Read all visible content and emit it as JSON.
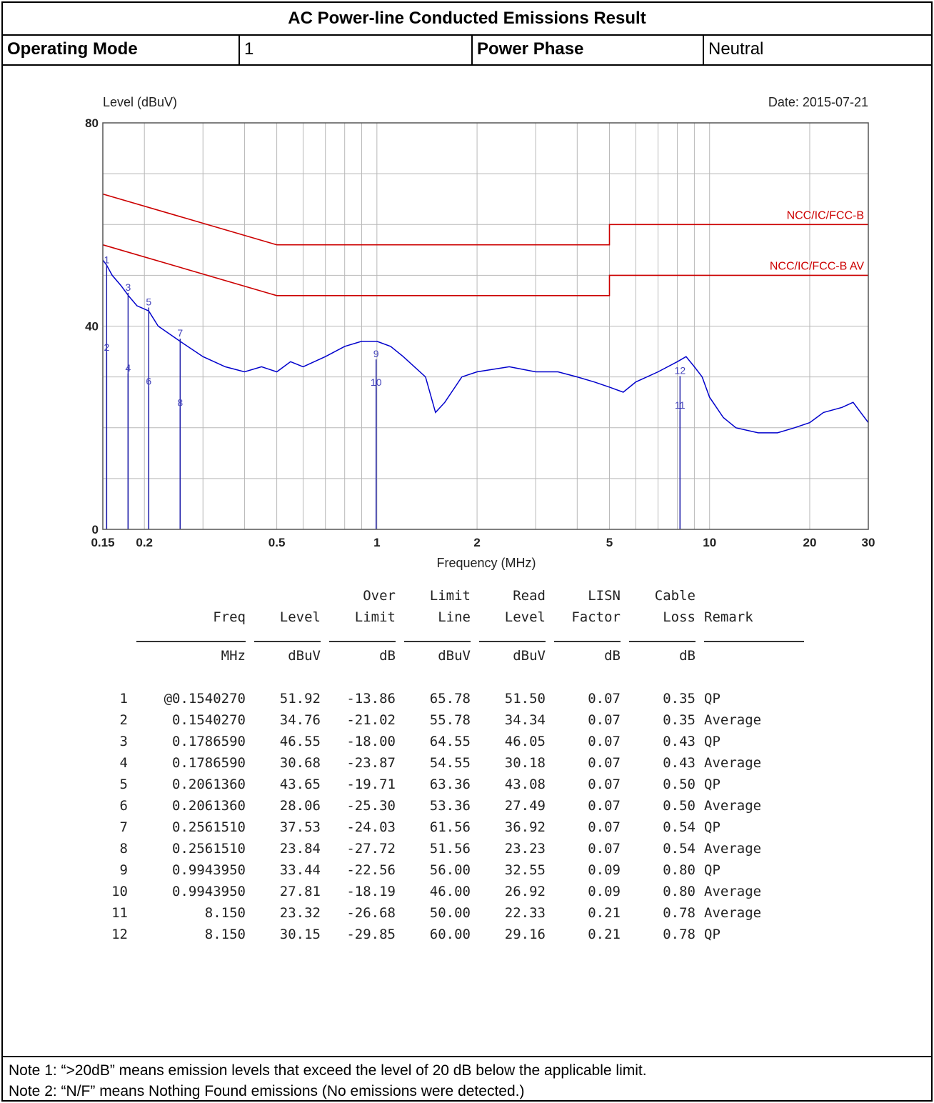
{
  "header": {
    "title": "AC Power-line Conducted Emissions Result",
    "operating_mode_label": "Operating Mode",
    "operating_mode_value": "1",
    "power_phase_label": "Power Phase",
    "power_phase_value": "Neutral"
  },
  "chart_data": {
    "type": "line",
    "ylabel": "Level (dBuV)",
    "xlabel": "Frequency (MHz)",
    "date": "Date: 2015-07-21",
    "xscale": "log",
    "xlim": [
      0.15,
      30
    ],
    "ylim": [
      0,
      80
    ],
    "x_ticks": [
      0.15,
      0.2,
      0.5,
      1,
      2,
      5,
      10,
      20,
      30
    ],
    "x_tick_labels": [
      "0.15",
      "0.2",
      "0.5",
      "1",
      "2",
      "5",
      "10",
      "20",
      "30"
    ],
    "y_ticks": [
      0,
      40,
      80
    ],
    "y_tick_labels": [
      "0",
      "40",
      "80"
    ],
    "grid": true,
    "series": [
      {
        "name": "NCC/IC/FCC-B",
        "color": "#cc0000",
        "points": [
          [
            0.15,
            66
          ],
          [
            0.5,
            56
          ],
          [
            5,
            56
          ],
          [
            5,
            60
          ],
          [
            30,
            60
          ]
        ]
      },
      {
        "name": "NCC/IC/FCC-B AV",
        "color": "#cc0000",
        "points": [
          [
            0.15,
            56
          ],
          [
            0.5,
            46
          ],
          [
            5,
            46
          ],
          [
            5,
            50
          ],
          [
            30,
            50
          ]
        ]
      },
      {
        "name": "",
        "color": "#0000cc",
        "points": [
          [
            0.15,
            53
          ],
          [
            0.154,
            52
          ],
          [
            0.16,
            50
          ],
          [
            0.17,
            48
          ],
          [
            0.179,
            46
          ],
          [
            0.19,
            44
          ],
          [
            0.206,
            43
          ],
          [
            0.22,
            40
          ],
          [
            0.256,
            37
          ],
          [
            0.3,
            34
          ],
          [
            0.35,
            32
          ],
          [
            0.4,
            31
          ],
          [
            0.45,
            32
          ],
          [
            0.5,
            31
          ],
          [
            0.55,
            33
          ],
          [
            0.6,
            32
          ],
          [
            0.7,
            34
          ],
          [
            0.8,
            36
          ],
          [
            0.9,
            37
          ],
          [
            1.0,
            37
          ],
          [
            1.1,
            36
          ],
          [
            1.2,
            34
          ],
          [
            1.4,
            30
          ],
          [
            1.5,
            23
          ],
          [
            1.6,
            25
          ],
          [
            1.8,
            30
          ],
          [
            2.0,
            31
          ],
          [
            2.5,
            32
          ],
          [
            3.0,
            31
          ],
          [
            3.5,
            31
          ],
          [
            4.0,
            30
          ],
          [
            4.5,
            29
          ],
          [
            5.0,
            28
          ],
          [
            5.5,
            27
          ],
          [
            6.0,
            29
          ],
          [
            7.0,
            31
          ],
          [
            8.0,
            33
          ],
          [
            8.5,
            34
          ],
          [
            9.0,
            32
          ],
          [
            9.5,
            30
          ],
          [
            10.0,
            26
          ],
          [
            11.0,
            22
          ],
          [
            12.0,
            20
          ],
          [
            14.0,
            19
          ],
          [
            16.0,
            19
          ],
          [
            18.0,
            20
          ],
          [
            20.0,
            21
          ],
          [
            22.0,
            23
          ],
          [
            25.0,
            24
          ],
          [
            27.0,
            25
          ],
          [
            30.0,
            21
          ]
        ]
      }
    ],
    "markers": [
      {
        "label": "1",
        "x": 0.154027,
        "y": 51.92
      },
      {
        "label": "2",
        "x": 0.154027,
        "y": 34.76
      },
      {
        "label": "3",
        "x": 0.178659,
        "y": 46.55
      },
      {
        "label": "4",
        "x": 0.178659,
        "y": 30.68
      },
      {
        "label": "5",
        "x": 0.206136,
        "y": 43.65
      },
      {
        "label": "6",
        "x": 0.206136,
        "y": 28.06
      },
      {
        "label": "7",
        "x": 0.256151,
        "y": 37.53
      },
      {
        "label": "8",
        "x": 0.256151,
        "y": 23.84
      },
      {
        "label": "9",
        "x": 0.994395,
        "y": 33.44
      },
      {
        "label": "10",
        "x": 0.994395,
        "y": 27.81
      },
      {
        "label": "11",
        "x": 8.15,
        "y": 23.32
      },
      {
        "label": "12",
        "x": 8.15,
        "y": 30.15
      }
    ]
  },
  "table": {
    "header_top": [
      "",
      "",
      "",
      "Over",
      "Limit",
      "Read",
      "LISN",
      "Cable",
      ""
    ],
    "header_mid": [
      "",
      "Freq",
      "Level",
      "Limit",
      "Line",
      "Level",
      "Factor",
      "Loss",
      "Remark"
    ],
    "units": [
      "",
      "MHz",
      "dBuV",
      "dB",
      "dBuV",
      "dBuV",
      "dB",
      "dB",
      ""
    ],
    "rows": [
      [
        "1",
        "@0.1540270",
        "51.92",
        "-13.86",
        "65.78",
        "51.50",
        "0.07",
        "0.35",
        "QP"
      ],
      [
        "2",
        "0.1540270",
        "34.76",
        "-21.02",
        "55.78",
        "34.34",
        "0.07",
        "0.35",
        "Average"
      ],
      [
        "3",
        "0.1786590",
        "46.55",
        "-18.00",
        "64.55",
        "46.05",
        "0.07",
        "0.43",
        "QP"
      ],
      [
        "4",
        "0.1786590",
        "30.68",
        "-23.87",
        "54.55",
        "30.18",
        "0.07",
        "0.43",
        "Average"
      ],
      [
        "5",
        "0.2061360",
        "43.65",
        "-19.71",
        "63.36",
        "43.08",
        "0.07",
        "0.50",
        "QP"
      ],
      [
        "6",
        "0.2061360",
        "28.06",
        "-25.30",
        "53.36",
        "27.49",
        "0.07",
        "0.50",
        "Average"
      ],
      [
        "7",
        "0.2561510",
        "37.53",
        "-24.03",
        "61.56",
        "36.92",
        "0.07",
        "0.54",
        "QP"
      ],
      [
        "8",
        "0.2561510",
        "23.84",
        "-27.72",
        "51.56",
        "23.23",
        "0.07",
        "0.54",
        "Average"
      ],
      [
        "9",
        "0.9943950",
        "33.44",
        "-22.56",
        "56.00",
        "32.55",
        "0.09",
        "0.80",
        "QP"
      ],
      [
        "10",
        "0.9943950",
        "27.81",
        "-18.19",
        "46.00",
        "26.92",
        "0.09",
        "0.80",
        "Average"
      ],
      [
        "11",
        "8.150",
        "23.32",
        "-26.68",
        "50.00",
        "22.33",
        "0.21",
        "0.78",
        "Average"
      ],
      [
        "12",
        "8.150",
        "30.15",
        "-29.85",
        "60.00",
        "29.16",
        "0.21",
        "0.78",
        "QP"
      ]
    ]
  },
  "notes": [
    "Note 1: “>20dB” means emission levels that exceed the level of 20 dB below the applicable limit.",
    "Note 2: “N/F” means Nothing Found emissions (No emissions were detected.)"
  ]
}
